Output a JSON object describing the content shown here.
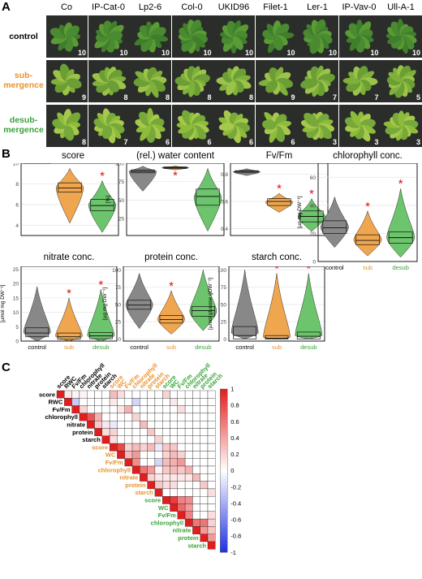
{
  "panels": {
    "a": "A",
    "b": "B",
    "c": "C"
  },
  "accessions": [
    "Co",
    "IP-Cat-0",
    "Lp2-6",
    "Col-0",
    "UKID96",
    "Filet-1",
    "Ler-1",
    "IP-Vav-0",
    "Ull-A-1"
  ],
  "conditions": [
    {
      "label": "control",
      "color": "#000000",
      "counts": [
        "10",
        "10",
        "10",
        "10",
        "10",
        "10",
        "10",
        "10",
        "10"
      ]
    },
    {
      "label": "sub-\nmergence",
      "color": "#e8922e",
      "counts": [
        "9",
        "8",
        "8",
        "8",
        "8",
        "9",
        "7",
        "7",
        "5"
      ]
    },
    {
      "label": "desub-\nmergence",
      "color": "#3aa23a",
      "counts": [
        "8",
        "7",
        "6",
        "6",
        "6",
        "6",
        "3",
        "3",
        "3"
      ]
    }
  ],
  "colors": {
    "control": "#888888",
    "sub": "#f0a64e",
    "desub": "#6cc46c",
    "star": "#dd1111",
    "pos": "#e11d1d",
    "neg": "#2030e0"
  },
  "chart_data": [
    {
      "type": "violin",
      "title": "score",
      "ylabel": "",
      "ylim": [
        3,
        10
      ],
      "yticks": [
        4,
        6,
        8,
        10
      ],
      "categories": [
        "control",
        "sub",
        "desub"
      ],
      "show_xlabels": false,
      "series": [
        {
          "name": "control",
          "median": 10,
          "q1": 10,
          "q3": 10,
          "min": 10,
          "max": 10
        },
        {
          "name": "sub",
          "median": 7.6,
          "q1": 7.2,
          "q3": 8.1,
          "min": 4.2,
          "max": 9.5,
          "star": true
        },
        {
          "name": "desub",
          "median": 5.9,
          "q1": 5.4,
          "q3": 6.5,
          "min": 3.3,
          "max": 8.3,
          "star": true
        }
      ]
    },
    {
      "type": "violin",
      "title": "(rel.) water content",
      "ylabel": "[%]",
      "ylim": [
        2,
        100
      ],
      "yticks": [
        25,
        50,
        75,
        100
      ],
      "categories": [
        "control",
        "sub",
        "desub"
      ],
      "show_xlabels": false,
      "series": [
        {
          "name": "control",
          "median": 89,
          "q1": 87,
          "q3": 91,
          "min": 62,
          "max": 96
        },
        {
          "name": "sub",
          "median": 94,
          "q1": 93,
          "q3": 95,
          "min": 91,
          "max": 96,
          "star": true,
          "starBelow": true
        },
        {
          "name": "desub",
          "median": 55,
          "q1": 43,
          "q3": 65,
          "min": 8,
          "max": 93,
          "star": true
        }
      ]
    },
    {
      "type": "violin",
      "title": "Fv/Fm",
      "ylabel": "",
      "ylim": [
        0.35,
        0.88
      ],
      "yticks": [
        0.4,
        0.6,
        0.8
      ],
      "categories": [
        "control",
        "sub",
        "desub"
      ],
      "show_xlabels": false,
      "series": [
        {
          "name": "control",
          "median": 0.82,
          "q1": 0.81,
          "q3": 0.825,
          "min": 0.79,
          "max": 0.84
        },
        {
          "name": "sub",
          "median": 0.6,
          "q1": 0.57,
          "q3": 0.62,
          "min": 0.52,
          "max": 0.66,
          "star": true
        },
        {
          "name": "desub",
          "median": 0.49,
          "q1": 0.45,
          "q3": 0.53,
          "min": 0.38,
          "max": 0.62,
          "star": true
        }
      ]
    },
    {
      "type": "violin",
      "title": "chlorophyll conc.",
      "ylabel": "[µg mg DW⁻¹]",
      "ylim": [
        0,
        70
      ],
      "yticks": [
        0,
        20,
        40,
        60
      ],
      "categories": [
        "control",
        "sub",
        "desub"
      ],
      "show_xlabels": true,
      "series": [
        {
          "name": "control",
          "median": 24,
          "q1": 20,
          "q3": 29,
          "min": 10,
          "max": 46
        },
        {
          "name": "sub",
          "median": 15,
          "q1": 12,
          "q3": 19,
          "min": 4,
          "max": 36,
          "star": true
        },
        {
          "name": "desub",
          "median": 17,
          "q1": 13,
          "q3": 21,
          "min": 3,
          "max": 52,
          "star": true
        }
      ]
    },
    {
      "type": "violin",
      "title": "nitrate conc.",
      "ylabel": "[µmol mg DW⁻¹]",
      "ylim": [
        0,
        26
      ],
      "yticks": [
        0,
        5,
        10,
        15,
        20,
        25
      ],
      "categories": [
        "control",
        "sub",
        "desub"
      ],
      "show_xlabels": true,
      "series": [
        {
          "name": "control",
          "median": 2.8,
          "q1": 1.5,
          "q3": 4.6,
          "min": 0,
          "max": 19
        },
        {
          "name": "sub",
          "median": 1.5,
          "q1": 0.6,
          "q3": 2.8,
          "min": 0,
          "max": 15,
          "star": true
        },
        {
          "name": "desub",
          "median": 1.8,
          "q1": 0.8,
          "q3": 3.0,
          "min": 0,
          "max": 18,
          "star": true
        }
      ]
    },
    {
      "type": "violin",
      "title": "protein conc.",
      "ylabel": "[µg mg DW⁻¹]",
      "ylim": [
        -3,
        105
      ],
      "yticks": [
        0,
        25,
        50,
        75,
        100
      ],
      "categories": [
        "control",
        "sub",
        "desub"
      ],
      "show_xlabels": true,
      "series": [
        {
          "name": "control",
          "median": 49,
          "q1": 43,
          "q3": 56,
          "min": 15,
          "max": 95
        },
        {
          "name": "sub",
          "median": 28,
          "q1": 23,
          "q3": 34,
          "min": 7,
          "max": 70,
          "star": true
        },
        {
          "name": "desub",
          "median": 41,
          "q1": 33,
          "q3": 47,
          "min": 12,
          "max": 100
        }
      ]
    },
    {
      "type": "violin",
      "title": "starch conc.",
      "ylabel": "[µmol glucose gDW⁻¹]",
      "ylim": [
        -3,
        105
      ],
      "yticks": [
        0,
        25,
        50,
        75,
        100
      ],
      "categories": [
        "control",
        "sub",
        "desub"
      ],
      "show_xlabels": true,
      "series": [
        {
          "name": "control",
          "median": 5,
          "q1": 0,
          "q3": 18,
          "min": 0,
          "max": 100
        },
        {
          "name": "sub",
          "median": 1,
          "q1": 0,
          "q3": 5,
          "min": 0,
          "max": 95,
          "star": true
        },
        {
          "name": "desub",
          "median": 4,
          "q1": 0,
          "q3": 10,
          "min": 0,
          "max": 95,
          "star": true
        }
      ]
    },
    {
      "type": "heatmap",
      "title": "",
      "labels": [
        "score",
        "RWC",
        "Fv/Fm",
        "chlorophyll",
        "nitrate",
        "protein",
        "starch",
        "score",
        "WC",
        "Fv/Fm",
        "chlorophyll",
        "nitrate",
        "protein",
        "starch",
        "score",
        "WC",
        "Fv/Fm",
        "chlorophyll",
        "nitrate",
        "protein",
        "starch"
      ],
      "groups": [
        "control",
        "control",
        "control",
        "control",
        "control",
        "control",
        "control",
        "sub",
        "sub",
        "sub",
        "sub",
        "sub",
        "sub",
        "sub",
        "desub",
        "desub",
        "desub",
        "desub",
        "desub",
        "desub",
        "desub"
      ],
      "colorbar_ticks": [
        "1",
        "0.8",
        "0.6",
        "0.4",
        "0.2",
        "0",
        "-0.2",
        "-0.4",
        "-0.6",
        "-0.8",
        "-1"
      ],
      "nonzero": [
        [
          1,
          0,
          0.1
        ],
        [
          2,
          0,
          0.05
        ],
        [
          2,
          1,
          -0.25
        ],
        [
          3,
          0,
          0.05
        ],
        [
          3,
          2,
          0.2
        ],
        [
          4,
          3,
          0.75
        ],
        [
          5,
          3,
          0.35
        ],
        [
          5,
          4,
          0.25
        ],
        [
          6,
          4,
          0.1
        ],
        [
          6,
          5,
          0.15
        ],
        [
          8,
          7,
          0.8
        ],
        [
          9,
          7,
          0.2
        ],
        [
          9,
          8,
          0.3
        ],
        [
          10,
          7,
          0.3
        ],
        [
          10,
          8,
          0.45
        ],
        [
          10,
          9,
          0.5
        ],
        [
          11,
          10,
          0.6
        ],
        [
          12,
          10,
          0.45
        ],
        [
          12,
          11,
          0.2
        ],
        [
          13,
          9,
          -0.2
        ],
        [
          13,
          10,
          0.05
        ],
        [
          13,
          11,
          0.1
        ],
        [
          13,
          12,
          0.25
        ],
        [
          7,
          0,
          0.3
        ],
        [
          7,
          1,
          0.1
        ],
        [
          8,
          0,
          0.15
        ],
        [
          8,
          2,
          0.1
        ],
        [
          9,
          2,
          0.35
        ],
        [
          10,
          3,
          0.2
        ],
        [
          11,
          4,
          0.3
        ],
        [
          12,
          5,
          0.25
        ],
        [
          13,
          6,
          0.2
        ],
        [
          10,
          1,
          -0.2
        ],
        [
          7,
          4,
          -0.1
        ],
        [
          7,
          5,
          0.2
        ],
        [
          7,
          6,
          0.15
        ],
        [
          14,
          7,
          0.25
        ],
        [
          14,
          8,
          0.2
        ],
        [
          14,
          9,
          0.3
        ],
        [
          14,
          10,
          0.25
        ],
        [
          14,
          11,
          0.1
        ],
        [
          14,
          12,
          0.15
        ],
        [
          15,
          7,
          0.25
        ],
        [
          15,
          8,
          0.3
        ],
        [
          15,
          9,
          0.35
        ],
        [
          15,
          10,
          0.3
        ],
        [
          15,
          11,
          0.1
        ],
        [
          15,
          12,
          0.15
        ],
        [
          16,
          8,
          0.2
        ],
        [
          16,
          9,
          0.45
        ],
        [
          16,
          10,
          0.25
        ],
        [
          16,
          11,
          0.1
        ],
        [
          17,
          10,
          0.35
        ],
        [
          17,
          11,
          0.1
        ],
        [
          18,
          11,
          0.3
        ],
        [
          19,
          12,
          0.25
        ],
        [
          20,
          13,
          0.15
        ],
        [
          14,
          0,
          0.2
        ],
        [
          15,
          1,
          0.1
        ],
        [
          16,
          2,
          0.15
        ],
        [
          15,
          14,
          0.85
        ],
        [
          16,
          14,
          0.55
        ],
        [
          16,
          15,
          0.65
        ],
        [
          17,
          14,
          0.5
        ],
        [
          17,
          15,
          0.45
        ],
        [
          17,
          16,
          0.55
        ],
        [
          18,
          17,
          0.6
        ],
        [
          19,
          17,
          0.6
        ],
        [
          19,
          18,
          0.45
        ],
        [
          20,
          16,
          0.15
        ],
        [
          20,
          17,
          0.2
        ],
        [
          20,
          18,
          0.25
        ],
        [
          20,
          19,
          0.45
        ],
        [
          13,
          7,
          -0.1
        ],
        [
          12,
          7,
          0.3
        ],
        [
          11,
          7,
          0.2
        ]
      ]
    }
  ]
}
